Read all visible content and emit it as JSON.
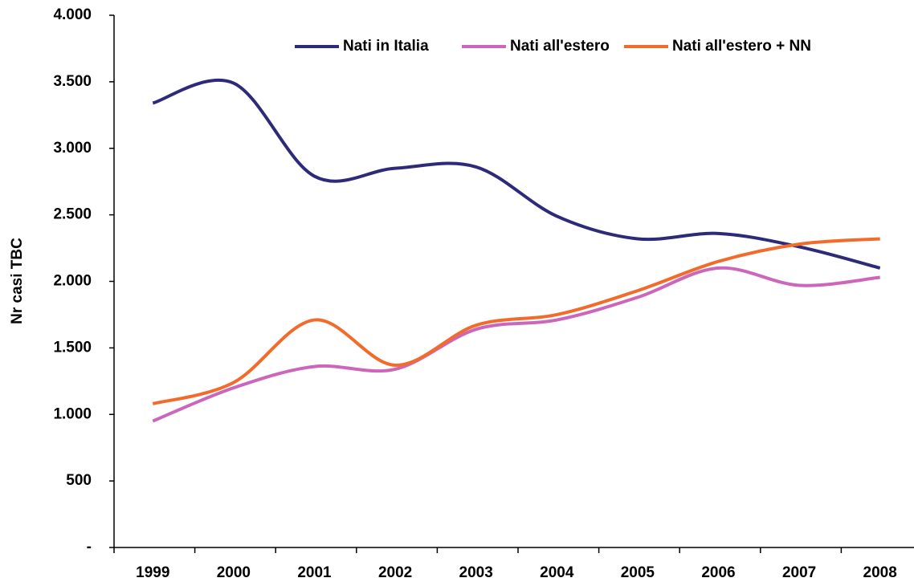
{
  "chart_data": {
    "type": "line",
    "y_label": "Nr casi TBC",
    "categories": [
      "1999",
      "2000",
      "2001",
      "2002",
      "2003",
      "2004",
      "2005",
      "2006",
      "2007",
      "2008"
    ],
    "series": [
      {
        "name": "Nati in Italia",
        "color": "#2e2a7a",
        "values": [
          3340,
          3490,
          2790,
          2850,
          2860,
          2490,
          2320,
          2360,
          2260,
          2100
        ]
      },
      {
        "name": "Nati all'estero",
        "color": "#cc66bb",
        "values": [
          950,
          1200,
          1360,
          1340,
          1640,
          1710,
          1880,
          2100,
          1970,
          2030
        ]
      },
      {
        "name": "Nati all'estero + NN",
        "color": "#f26b2b",
        "values": [
          1080,
          1240,
          1710,
          1370,
          1670,
          1750,
          1930,
          2150,
          2280,
          2320
        ]
      }
    ],
    "ylim": [
      0,
      4000
    ],
    "yticks": [
      {
        "value": 0,
        "label": "-"
      },
      500,
      {
        "value": 1000,
        "label": "1.000"
      },
      {
        "value": 1500,
        "label": "1.500"
      },
      {
        "value": 2000,
        "label": "2.000"
      },
      {
        "value": 2500,
        "label": "2.500"
      },
      {
        "value": 3000,
        "label": "3.000"
      },
      {
        "value": 3500,
        "label": "3.500"
      },
      {
        "value": 4000,
        "label": "4.000"
      }
    ],
    "grid": false,
    "legend": "top-right"
  }
}
